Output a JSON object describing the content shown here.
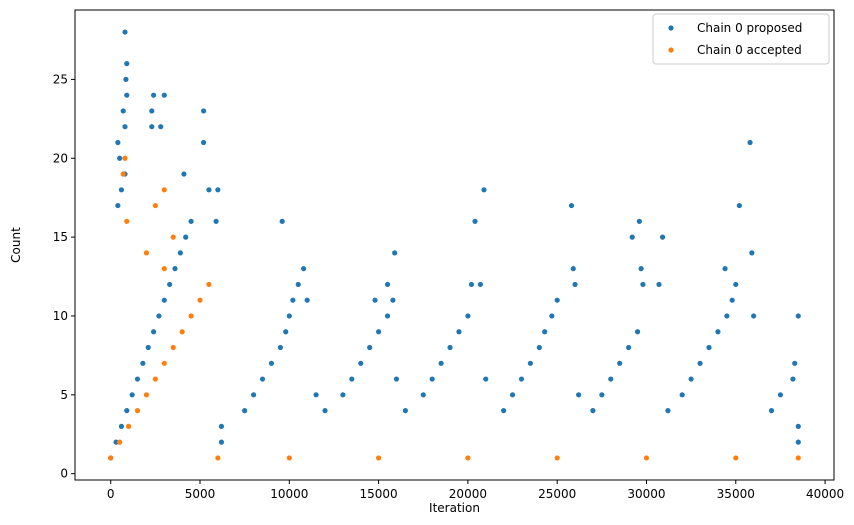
{
  "chart_data": {
    "type": "scatter",
    "xlabel": "Iteration",
    "ylabel": "Count",
    "xlim": [
      -2000,
      40500
    ],
    "ylim": [
      -0.4,
      29.4
    ],
    "xticks": [
      0,
      5000,
      10000,
      15000,
      20000,
      25000,
      30000,
      35000,
      40000
    ],
    "yticks": [
      0,
      5,
      10,
      15,
      20,
      25
    ],
    "grid": false,
    "legend_position": "top-right",
    "series": [
      {
        "name": "Chain 0 proposed",
        "color": "#1f77b4",
        "points": [
          [
            0,
            1
          ],
          [
            300,
            2
          ],
          [
            600,
            3
          ],
          [
            900,
            4
          ],
          [
            1200,
            5
          ],
          [
            1500,
            6
          ],
          [
            1800,
            7
          ],
          [
            2100,
            8
          ],
          [
            2400,
            9
          ],
          [
            2700,
            10
          ],
          [
            3000,
            11
          ],
          [
            3300,
            12
          ],
          [
            3600,
            13
          ],
          [
            3900,
            14
          ],
          [
            4200,
            15
          ],
          [
            4500,
            16
          ],
          [
            400,
            17
          ],
          [
            600,
            18
          ],
          [
            800,
            19
          ],
          [
            500,
            20
          ],
          [
            400,
            21
          ],
          [
            800,
            22
          ],
          [
            700,
            23
          ],
          [
            900,
            24
          ],
          [
            850,
            25
          ],
          [
            900,
            26
          ],
          [
            800,
            28
          ],
          [
            2300,
            22
          ],
          [
            2400,
            24
          ],
          [
            2300,
            23
          ],
          [
            3000,
            24
          ],
          [
            2800,
            22
          ],
          [
            5200,
            23
          ],
          [
            5200,
            21
          ],
          [
            4100,
            19
          ],
          [
            5500,
            18
          ],
          [
            6000,
            18
          ],
          [
            5900,
            16
          ],
          [
            6200,
            3
          ],
          [
            6200,
            2
          ],
          [
            7500,
            4
          ],
          [
            8000,
            5
          ],
          [
            8500,
            6
          ],
          [
            9000,
            7
          ],
          [
            9500,
            8
          ],
          [
            9800,
            9
          ],
          [
            10000,
            10
          ],
          [
            10200,
            11
          ],
          [
            10500,
            12
          ],
          [
            10800,
            13
          ],
          [
            9600,
            16
          ],
          [
            11000,
            11
          ],
          [
            12000,
            4
          ],
          [
            11500,
            5
          ],
          [
            13000,
            5
          ],
          [
            13500,
            6
          ],
          [
            14000,
            7
          ],
          [
            14500,
            8
          ],
          [
            15000,
            9
          ],
          [
            15500,
            10
          ],
          [
            15800,
            11
          ],
          [
            15500,
            12
          ],
          [
            15900,
            14
          ],
          [
            14800,
            11
          ],
          [
            16000,
            6
          ],
          [
            16500,
            4
          ],
          [
            17500,
            5
          ],
          [
            18000,
            6
          ],
          [
            18500,
            7
          ],
          [
            19000,
            8
          ],
          [
            19500,
            9
          ],
          [
            20000,
            10
          ],
          [
            20200,
            12
          ],
          [
            20400,
            16
          ],
          [
            20900,
            18
          ],
          [
            20700,
            12
          ],
          [
            21000,
            6
          ],
          [
            22000,
            4
          ],
          [
            22500,
            5
          ],
          [
            23000,
            6
          ],
          [
            23500,
            7
          ],
          [
            24000,
            8
          ],
          [
            24300,
            9
          ],
          [
            24700,
            10
          ],
          [
            25000,
            11
          ],
          [
            25800,
            17
          ],
          [
            25900,
            13
          ],
          [
            26000,
            12
          ],
          [
            26200,
            5
          ],
          [
            27000,
            4
          ],
          [
            27500,
            5
          ],
          [
            28000,
            6
          ],
          [
            28500,
            7
          ],
          [
            29000,
            8
          ],
          [
            29500,
            9
          ],
          [
            29800,
            12
          ],
          [
            29600,
            16
          ],
          [
            29200,
            15
          ],
          [
            29700,
            13
          ],
          [
            30700,
            12
          ],
          [
            30900,
            15
          ],
          [
            31200,
            4
          ],
          [
            32000,
            5
          ],
          [
            32500,
            6
          ],
          [
            33000,
            7
          ],
          [
            33500,
            8
          ],
          [
            34000,
            9
          ],
          [
            34500,
            10
          ],
          [
            34800,
            11
          ],
          [
            35000,
            12
          ],
          [
            34400,
            13
          ],
          [
            35200,
            17
          ],
          [
            35800,
            21
          ],
          [
            35900,
            14
          ],
          [
            36000,
            10
          ],
          [
            37000,
            4
          ],
          [
            37500,
            5
          ],
          [
            38200,
            6
          ],
          [
            38300,
            7
          ],
          [
            38500,
            10
          ],
          [
            38500,
            3
          ],
          [
            38500,
            2
          ]
        ]
      },
      {
        "name": "Chain 0 accepted",
        "color": "#ff7f0e",
        "points": [
          [
            0,
            1
          ],
          [
            500,
            2
          ],
          [
            1000,
            3
          ],
          [
            1500,
            4
          ],
          [
            2000,
            5
          ],
          [
            2500,
            6
          ],
          [
            3000,
            7
          ],
          [
            3500,
            8
          ],
          [
            4000,
            9
          ],
          [
            4500,
            10
          ],
          [
            5000,
            11
          ],
          [
            5500,
            12
          ],
          [
            3000,
            13
          ],
          [
            2000,
            14
          ],
          [
            3500,
            15
          ],
          [
            900,
            16
          ],
          [
            2500,
            17
          ],
          [
            3000,
            18
          ],
          [
            700,
            19
          ],
          [
            800,
            20
          ],
          [
            6000,
            1
          ],
          [
            10000,
            1
          ],
          [
            15000,
            1
          ],
          [
            20000,
            1
          ],
          [
            25000,
            1
          ],
          [
            30000,
            1
          ],
          [
            35000,
            1
          ],
          [
            38500,
            1
          ]
        ]
      }
    ]
  }
}
